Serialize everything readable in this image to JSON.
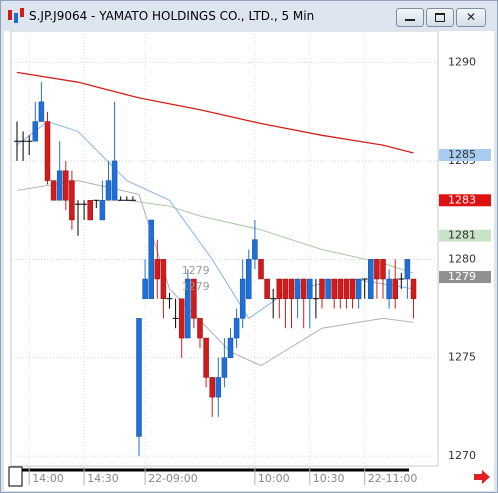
{
  "chart_data": {
    "type": "candlestick",
    "title": "S.JP.J9064 - YAMATO HOLDINGS CO., LTD., 5 Min",
    "categories": [
      null,
      null,
      "14:00",
      null,
      null,
      null,
      null,
      null,
      null,
      null,
      null,
      "14:30",
      null,
      null,
      null,
      null,
      null,
      null,
      null,
      null,
      null,
      "22-09:00",
      null,
      null,
      null,
      null,
      null,
      null,
      null,
      null,
      null,
      null,
      null,
      null,
      null,
      null,
      null,
      null,
      null,
      "10:00",
      null,
      null,
      null,
      null,
      null,
      null,
      null,
      null,
      "10:30",
      null,
      null,
      null,
      null,
      null,
      null,
      null,
      null,
      "22-11:00",
      null,
      null,
      null,
      null,
      null,
      null,
      null,
      null
    ],
    "open": [
      1286,
      1286,
      1286,
      1286,
      1287,
      1287,
      1284,
      1283,
      1284.5,
      1284,
      1282.8,
      1282.8,
      1283,
      1283,
      1282,
      1283,
      1283,
      1283,
      1283,
      1283,
      1271,
      1278,
      1278,
      1280,
      1280,
      1278,
      1277,
      1278,
      1276,
      1279,
      1277,
      1276,
      1274,
      1273,
      1274,
      1275,
      1276,
      1277,
      1278,
      1280,
      1280,
      1279,
      1278,
      1279,
      1279,
      1279,
      1278,
      1279,
      1278,
      1278,
      1279,
      1278,
      1279,
      1279,
      1279,
      1279,
      1278,
      1279,
      1278,
      1280,
      1280,
      1278,
      1279,
      1279,
      1279,
      1279
    ],
    "high": [
      1287,
      1286.5,
      1286.3,
      1288,
      1289,
      1287.5,
      1284,
      1286,
      1285,
      1284.5,
      1283,
      1283,
      1283,
      1283,
      1284,
      1285,
      1288,
      1283.2,
      1283.2,
      1283.2,
      1277,
      1280,
      1282,
      1281,
      1280,
      1278.3,
      1278,
      1278,
      1279.5,
      1279,
      1277,
      1276,
      1274,
      1275,
      1276,
      1276.5,
      1277.5,
      1280,
      1280.5,
      1282,
      1280,
      1279,
      1278.5,
      1279,
      1279,
      1279,
      1279,
      1279,
      1279,
      1279,
      1279,
      1279,
      1279,
      1279,
      1279,
      1279,
      1279,
      1279,
      1280,
      1280,
      1280,
      1279.5,
      1280,
      1279.3,
      1280,
      1279
    ],
    "low": [
      1285,
      1285,
      1285.3,
      1286,
      1287,
      1283.8,
      1283,
      1283,
      1282.5,
      1281.5,
      1281.2,
      1282,
      1282,
      1282.6,
      1282,
      1283,
      1283,
      1283,
      1283,
      1283,
      1270,
      1278,
      1278,
      1278,
      1277,
      1277.5,
      1276.5,
      1275,
      1276,
      1276.5,
      1275.5,
      1273.5,
      1272,
      1272,
      1273.5,
      1275,
      1275.5,
      1276.5,
      1278,
      1279.5,
      1279,
      1278,
      1277,
      1277,
      1276.5,
      1276.5,
      1277,
      1276.5,
      1276.5,
      1277,
      1277.5,
      1278,
      1277.5,
      1277.5,
      1277.5,
      1277.5,
      1277.5,
      1278,
      1278,
      1278,
      1278,
      1277.5,
      1277.5,
      1278.5,
      1278,
      1277
    ],
    "close": [
      1286,
      1286,
      1286,
      1287,
      1288,
      1284,
      1283,
      1284.5,
      1283,
      1282,
      1282.8,
      1282.8,
      1282,
      1283,
      1283,
      1284,
      1285,
      1283,
      1283,
      1283,
      1277,
      1279,
      1282,
      1279,
      1278,
      1278,
      1277,
      1276,
      1279,
      1277,
      1276,
      1274,
      1273,
      1274,
      1275,
      1276,
      1277,
      1279,
      1280,
      1281,
      1279,
      1278,
      1278,
      1278,
      1278,
      1278,
      1279,
      1278,
      1279,
      1278,
      1278,
      1279,
      1278,
      1278,
      1278,
      1278,
      1279,
      1279,
      1280,
      1279,
      1279,
      1279,
      1278,
      1279,
      1280,
      1278
    ],
    "up_color": "#1f6fd8",
    "down_color": "#d41a1a",
    "doji_color": "#000000",
    "ylim": [
      1269.5,
      1291.6
    ],
    "yticks": [
      1270,
      1275,
      1280,
      1285,
      1290
    ],
    "grid": true,
    "lines": [
      {
        "color": "#d42020",
        "x": [
          0,
          10,
          20,
          30,
          40,
          50,
          60,
          65
        ],
        "values": [
          1289.5,
          1289,
          1288.2,
          1287.6,
          1286.9,
          1286.3,
          1285.8,
          1285.4
        ]
      },
      {
        "color": "#8ab8e8",
        "x": [
          0,
          5,
          10,
          18,
          25,
          32,
          38,
          45,
          55,
          65
        ],
        "values": [
          1285.8,
          1287,
          1286.5,
          1284,
          1283,
          1280,
          1277,
          1278.5,
          1279,
          1278.5
        ]
      },
      {
        "color": "#a8c8a0",
        "x": [
          18,
          25,
          30,
          40,
          50,
          60,
          65
        ],
        "values": [
          1283,
          1282.7,
          1282.2,
          1281.5,
          1280.5,
          1279.8,
          1279.3
        ]
      },
      {
        "color": "#b0b0b0",
        "x": [
          0,
          10,
          20,
          25,
          35,
          40,
          50,
          60,
          65
        ],
        "values": [
          1283.5,
          1284,
          1283.3,
          1278.5,
          1275.3,
          1274.6,
          1276.5,
          1277,
          1276.8
        ]
      }
    ],
    "tags": [
      {
        "value": 1285.3,
        "label": "1285",
        "color": "#a8ccf0"
      },
      {
        "value": 1283,
        "label": "1283",
        "color": "#e01010"
      },
      {
        "value": 1281.2,
        "label": "1281",
        "color": "#c8e4c8"
      },
      {
        "value": 1279.1,
        "label": "1279",
        "color": "#909090"
      }
    ],
    "annotations": [
      {
        "text": "1279",
        "x": 27,
        "y": 1279.4
      },
      {
        "text": "1279",
        "x": 27,
        "y": 1278.6
      }
    ]
  }
}
